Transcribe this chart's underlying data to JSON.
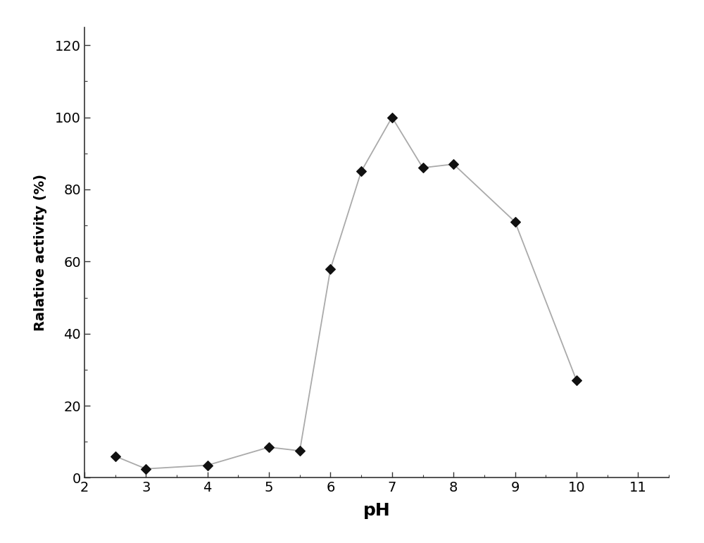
{
  "x": [
    2.5,
    3.0,
    4.0,
    5.0,
    5.5,
    6.0,
    6.5,
    7.0,
    7.5,
    8.0,
    9.0,
    10.0
  ],
  "y": [
    6.0,
    2.5,
    3.5,
    8.5,
    7.5,
    58.0,
    85.0,
    100.0,
    86.0,
    87.0,
    71.0,
    27.0
  ],
  "xlabel": "pH",
  "ylabel": "Ralative activity (%)",
  "xlim": [
    2.0,
    11.5
  ],
  "ylim": [
    0,
    125
  ],
  "xticks": [
    2,
    3,
    4,
    5,
    6,
    7,
    8,
    9,
    10,
    11
  ],
  "yticks": [
    0,
    20,
    40,
    60,
    80,
    100,
    120
  ],
  "line_color": "#aaaaaa",
  "marker_color": "#111111",
  "marker_size": 7,
  "line_width": 1.3,
  "xlabel_fontsize": 18,
  "ylabel_fontsize": 14,
  "tick_fontsize": 14,
  "background_color": "#ffffff"
}
